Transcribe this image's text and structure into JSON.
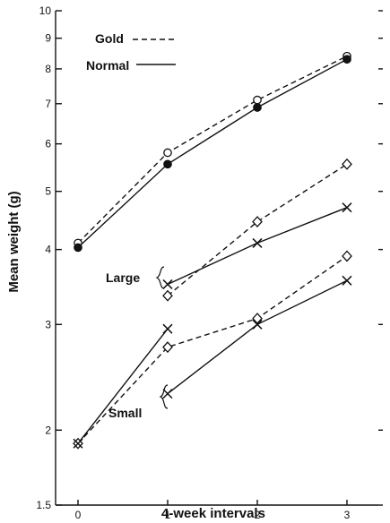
{
  "chart_data": {
    "type": "line",
    "title": "",
    "xlabel": "4-week intervals",
    "ylabel": "Mean weight (g)",
    "yscale": "log",
    "ylim": [
      1.5,
      10
    ],
    "xlim": [
      -0.25,
      3.35
    ],
    "x_ticks": [
      0,
      1,
      2,
      3
    ],
    "y_ticks": [
      1.5,
      2,
      3,
      4,
      5,
      6,
      7,
      8,
      9,
      10
    ],
    "y_tick_labels": [
      "1.5",
      "2",
      "3",
      "4",
      "5",
      "6",
      "7",
      "8",
      "9",
      "10"
    ],
    "legend": {
      "position": "top-left",
      "entries": [
        {
          "label": "Gold",
          "line_style": "dashed"
        },
        {
          "label": "Normal",
          "line_style": "solid"
        }
      ]
    },
    "annotations": [
      {
        "text": "Large",
        "near_series": "large"
      },
      {
        "text": "Small",
        "near_series": "small"
      }
    ],
    "series": [
      {
        "group": "main",
        "treatment": "Gold",
        "line_style": "dashed",
        "marker": "open-circle",
        "x": [
          0,
          1,
          2,
          3
        ],
        "values": [
          4.1,
          5.8,
          7.1,
          8.4
        ]
      },
      {
        "group": "main",
        "treatment": "Normal",
        "line_style": "solid",
        "marker": "filled-circle",
        "x": [
          0,
          1,
          2,
          3
        ],
        "values": [
          4.03,
          5.55,
          6.9,
          8.3
        ]
      },
      {
        "group": "large",
        "treatment": "Gold",
        "line_style": "dashed",
        "marker": "diamond",
        "x": [
          1,
          2,
          3
        ],
        "values": [
          3.35,
          4.45,
          5.55
        ]
      },
      {
        "group": "large",
        "treatment": "Normal",
        "line_style": "solid",
        "marker": "cross",
        "x": [
          1,
          2,
          3
        ],
        "values": [
          3.5,
          4.1,
          4.7
        ]
      },
      {
        "group": "small",
        "treatment": "Gold",
        "line_style": "dashed",
        "marker": "diamond",
        "x": [
          0,
          1,
          2,
          3
        ],
        "values": [
          1.9,
          2.75,
          3.07,
          3.9
        ]
      },
      {
        "group": "small",
        "treatment": "Normal",
        "line_style": "solid",
        "marker": "cross",
        "x": [
          0,
          1
        ],
        "values": [
          1.9,
          2.95
        ]
      },
      {
        "group": "small",
        "treatment": "Normal",
        "line_style": "solid",
        "marker": "cross",
        "x": [
          1,
          2,
          3
        ],
        "values": [
          2.3,
          3.0,
          3.55
        ]
      }
    ]
  }
}
